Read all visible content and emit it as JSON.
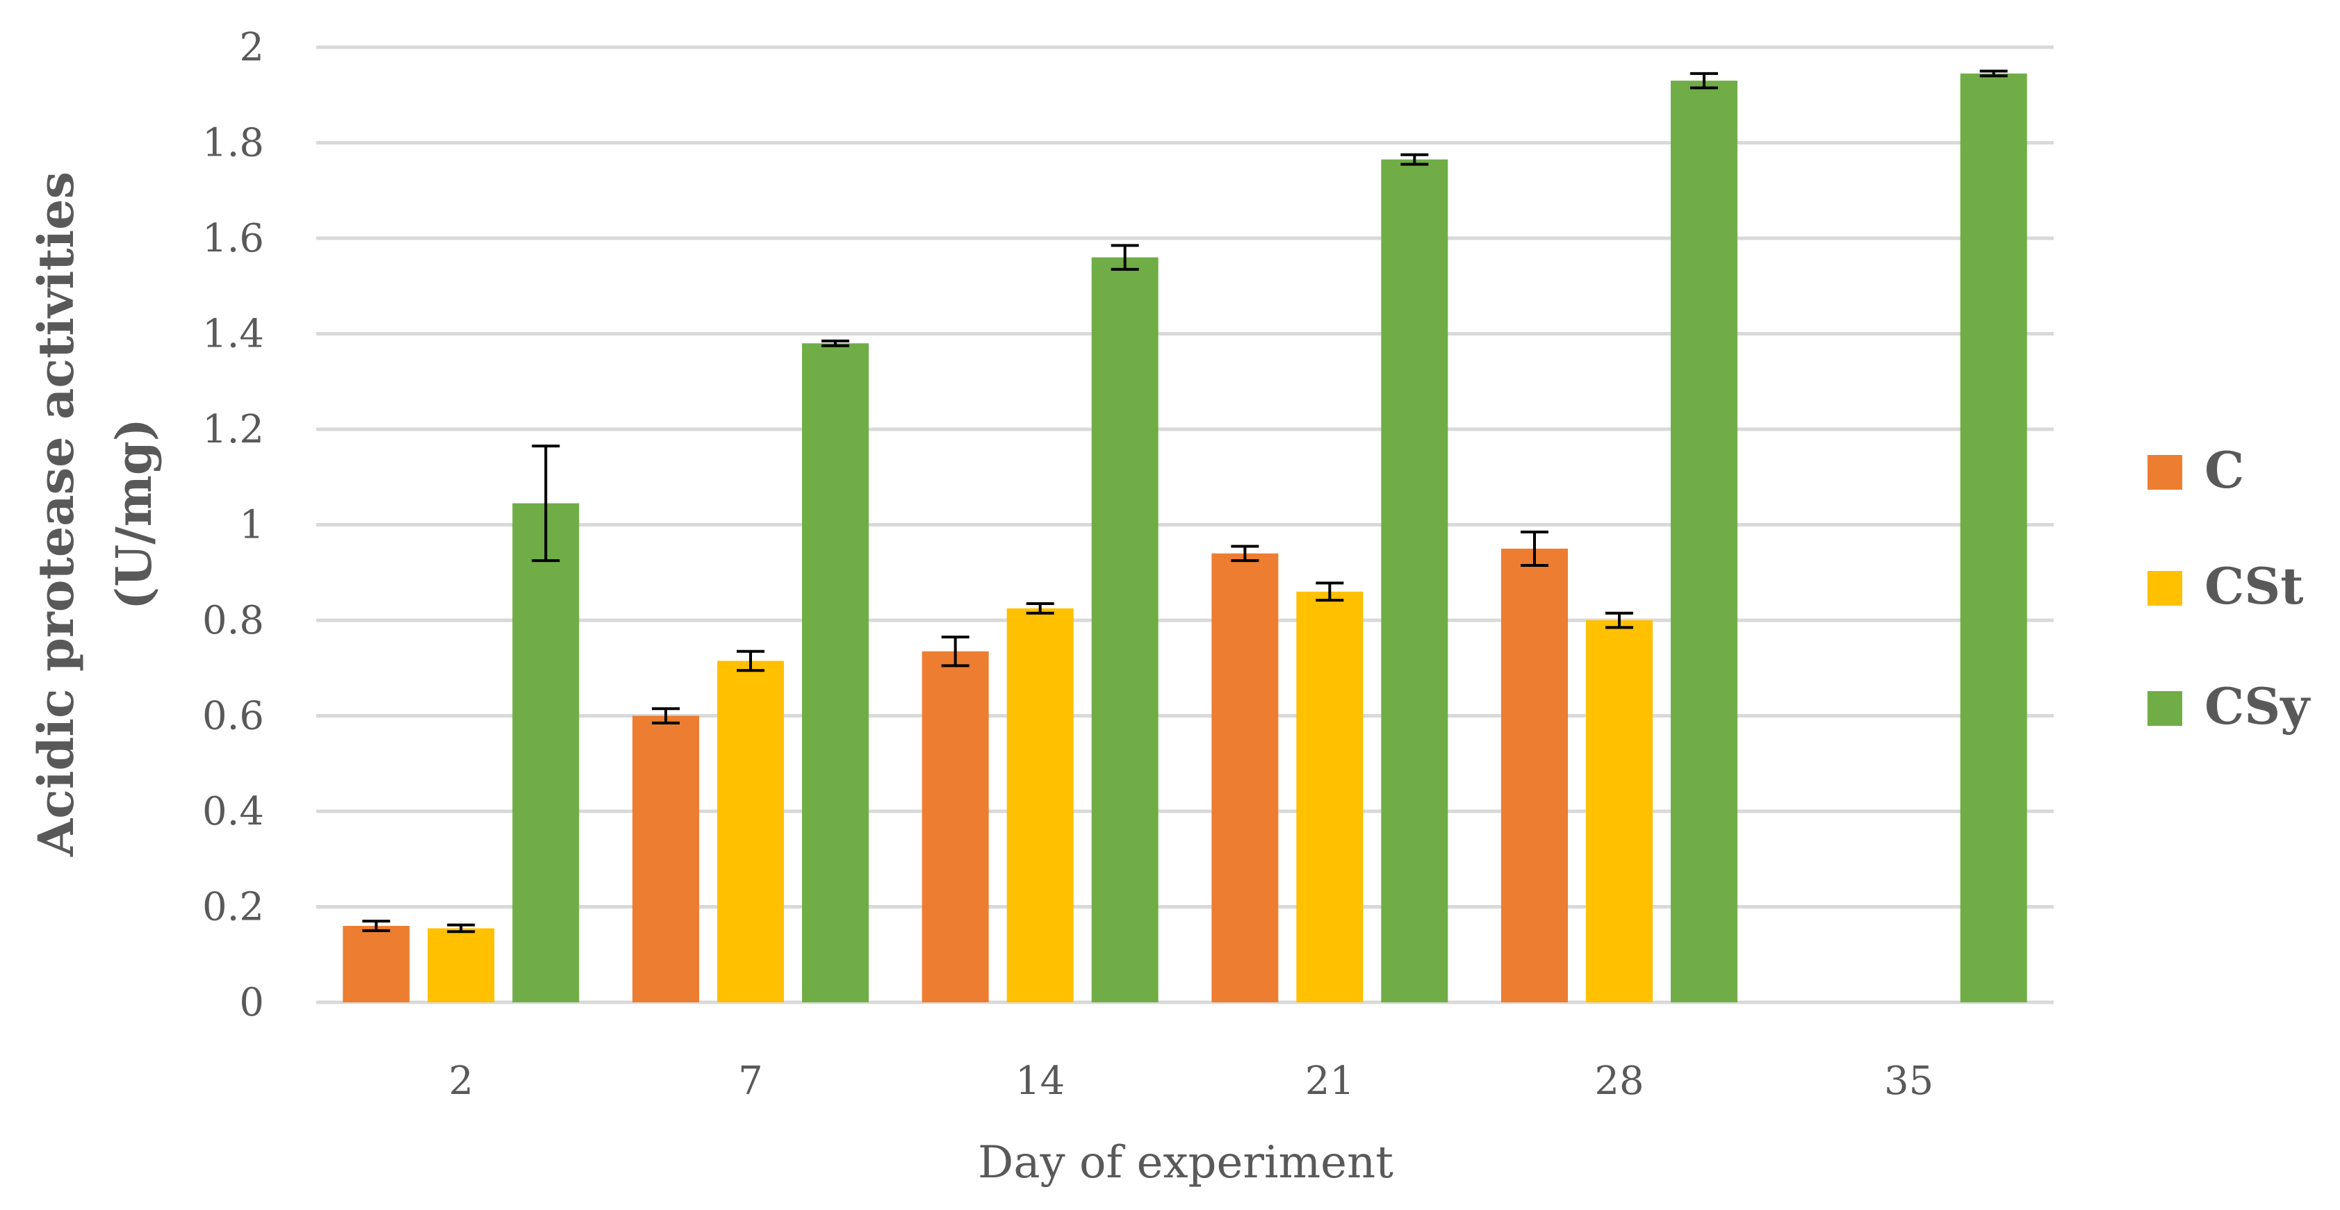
{
  "chart_data": {
    "type": "bar",
    "title": "",
    "xlabel": "Day of experiment",
    "ylabel_line1": "Acidic protease activities",
    "ylabel_line2": "(U/mg)",
    "ylim": [
      0,
      2
    ],
    "yticks": [
      "0",
      "0.2",
      "0.4",
      "0.6",
      "0.8",
      "1",
      "1.2",
      "1.4",
      "1.6",
      "1.8",
      "2"
    ],
    "grid": true,
    "legend_position": "right",
    "categories": [
      "2",
      "7",
      "14",
      "21",
      "28",
      "35"
    ],
    "series": [
      {
        "name": "C",
        "color": "#ED7D31",
        "values": [
          0.16,
          0.6,
          0.735,
          0.94,
          0.95,
          null
        ],
        "errors": [
          0.01,
          0.015,
          0.03,
          0.015,
          0.035,
          null
        ]
      },
      {
        "name": "CSt",
        "color": "#FFC000",
        "values": [
          0.155,
          0.715,
          0.825,
          0.86,
          0.8,
          null
        ],
        "errors": [
          0.007,
          0.02,
          0.01,
          0.018,
          0.015,
          null
        ]
      },
      {
        "name": "CSy",
        "color": "#70AD47",
        "values": [
          1.045,
          1.38,
          1.56,
          1.765,
          1.93,
          1.945
        ],
        "errors": [
          0.12,
          0.005,
          0.025,
          0.01,
          0.015,
          0.005
        ]
      }
    ]
  }
}
